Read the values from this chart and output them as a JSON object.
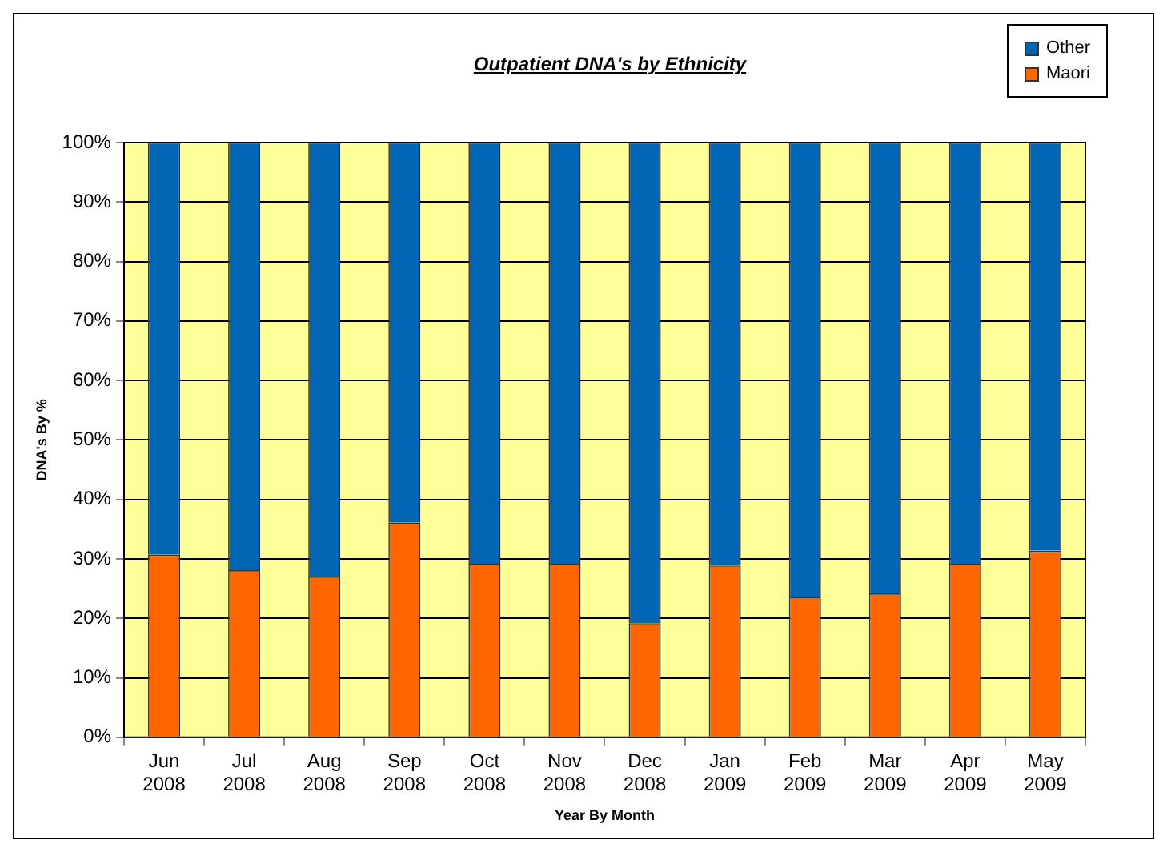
{
  "chart_data": {
    "type": "bar",
    "title": "Outpatient DNA's by Ethnicity",
    "xlabel": "Year By Month",
    "ylabel": "DNA's By %",
    "categories": [
      "Jun 2008",
      "Jul 2008",
      "Aug 2008",
      "Sep 2008",
      "Oct 2008",
      "Nov 2008",
      "Dec 2008",
      "Jan 2009",
      "Feb 2009",
      "Mar 2009",
      "Apr 2009",
      "May 2009"
    ],
    "series": [
      {
        "name": "Maori",
        "color": "#ff6600",
        "values": [
          30.7,
          28.1,
          27.0,
          36.1,
          29.2,
          29.2,
          19.2,
          28.9,
          23.6,
          24.2,
          29.2,
          31.4
        ]
      },
      {
        "name": "Other",
        "color": "#0066b3",
        "values": [
          69.3,
          71.9,
          73.0,
          63.9,
          70.8,
          70.8,
          80.8,
          71.1,
          76.4,
          75.8,
          70.8,
          68.6
        ]
      }
    ],
    "stacked": true,
    "ylim": [
      0,
      100
    ],
    "yticks": [
      {
        "value": 0,
        "label": "0%"
      },
      {
        "value": 10,
        "label": "10%"
      },
      {
        "value": 20,
        "label": "20%"
      },
      {
        "value": 30,
        "label": "30%"
      },
      {
        "value": 40,
        "label": "40%"
      },
      {
        "value": 50,
        "label": "50%"
      },
      {
        "value": 60,
        "label": "60%"
      },
      {
        "value": 70,
        "label": "70%"
      },
      {
        "value": 80,
        "label": "80%"
      },
      {
        "value": 90,
        "label": "90%"
      },
      {
        "value": 100,
        "label": "100%"
      }
    ],
    "grid": "y",
    "legend": "top right"
  }
}
